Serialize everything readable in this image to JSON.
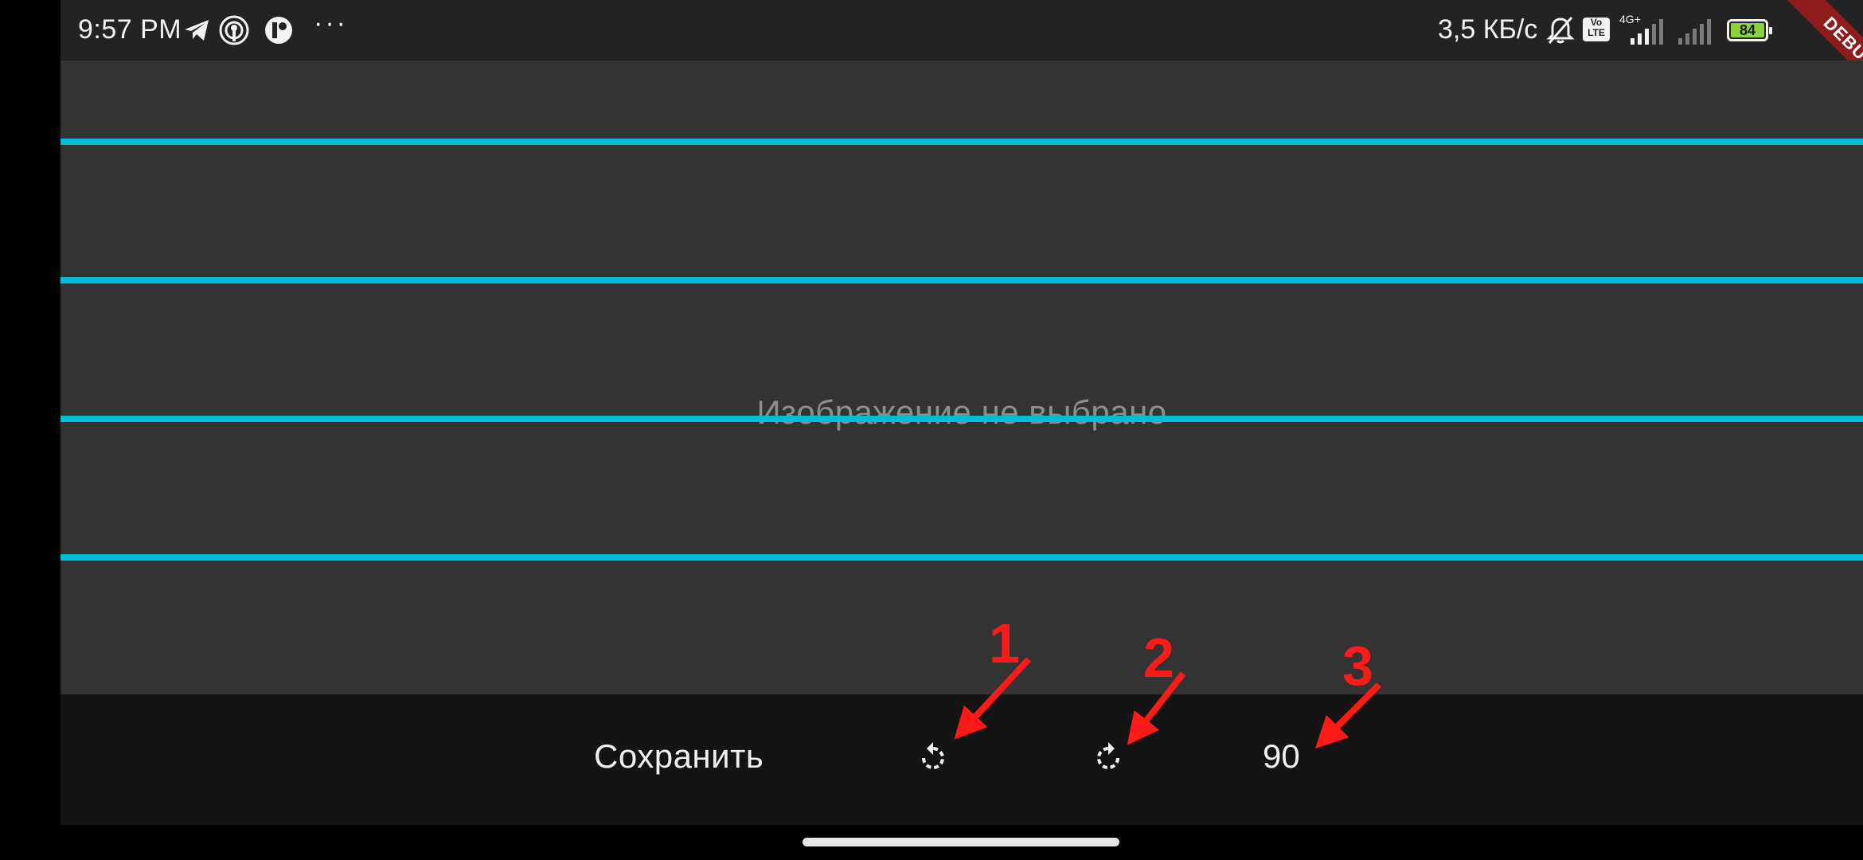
{
  "status_bar": {
    "time": "9:57 PM",
    "left_icons": [
      "telegram-icon",
      "broadcast-icon",
      "app-badge-icon"
    ],
    "overflow": "···",
    "net_speed": "3,5 КБ/с",
    "volte_label": "Vo\nLTE",
    "network_type": "4G+",
    "battery_level": "84",
    "debug_banner": "DEBUG"
  },
  "canvas": {
    "placeholder": "Изображение не выбрано",
    "guide_color": "#00bcd4",
    "background": "#333333"
  },
  "toolbar": {
    "save_label": "Сохранить",
    "rotate_left_icon": "rotate-left-icon",
    "rotate_right_icon": "rotate-right-icon",
    "angle_value": "90"
  },
  "annotations": {
    "labels": [
      "1",
      "2",
      "3"
    ],
    "color": "#ff1a1a"
  }
}
